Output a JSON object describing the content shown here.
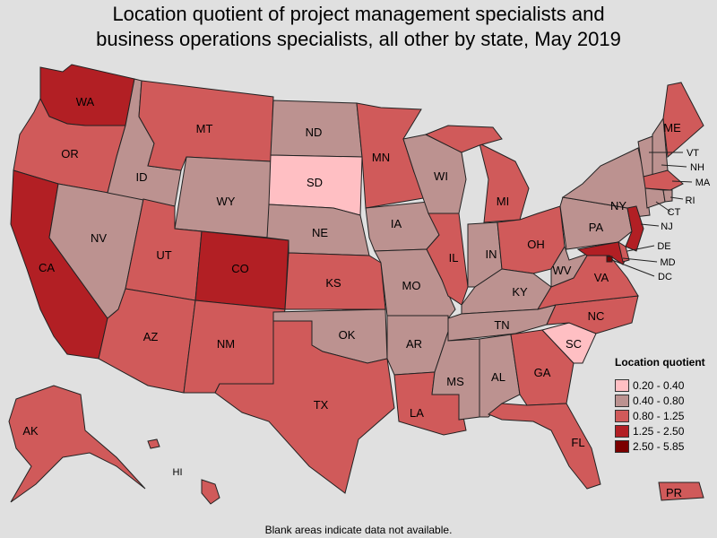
{
  "title_line1": "Location quotient of project management specialists and",
  "title_line2": "business operations specialists, all other by state, May 2019",
  "legend": {
    "title": "Location quotient",
    "items": [
      {
        "label": "0.20 - 0.40",
        "color": "#ffbfc3"
      },
      {
        "label": "0.40 - 0.80",
        "color": "#bc9290"
      },
      {
        "label": "0.80 - 1.25",
        "color": "#d05a5a"
      },
      {
        "label": "1.25 - 2.50",
        "color": "#b21f24"
      },
      {
        "label": "2.50 - 5.85",
        "color": "#7b0000"
      }
    ]
  },
  "footnote": "Blank areas indicate data not available.",
  "states": {
    "WA": 3,
    "OR": 2,
    "CA": 3,
    "NV": 1,
    "ID": 1,
    "MT": 2,
    "WY": 1,
    "UT": 2,
    "AZ": 2,
    "CO": 3,
    "NM": 2,
    "ND": 1,
    "SD": 0,
    "NE": 1,
    "KS": 2,
    "OK": 1,
    "TX": 2,
    "MN": 2,
    "IA": 1,
    "MO": 1,
    "AR": 1,
    "LA": 2,
    "WI": 1,
    "IL": 2,
    "MI": 2,
    "IN": 1,
    "OH": 2,
    "KY": 1,
    "TN": 1,
    "MS": 1,
    "AL": 1,
    "GA": 2,
    "FL": 2,
    "SC": 0,
    "NC": 2,
    "VA": 2,
    "WV": 1,
    "PA": 1,
    "NY": 1,
    "VT": 1,
    "NH": 1,
    "ME": 2,
    "MA": 2,
    "RI": 1,
    "CT": 1,
    "NJ": 3,
    "DE": 2,
    "MD": 3,
    "DC": 4,
    "AK": 2,
    "HI": 2,
    "PR": 2
  }
}
